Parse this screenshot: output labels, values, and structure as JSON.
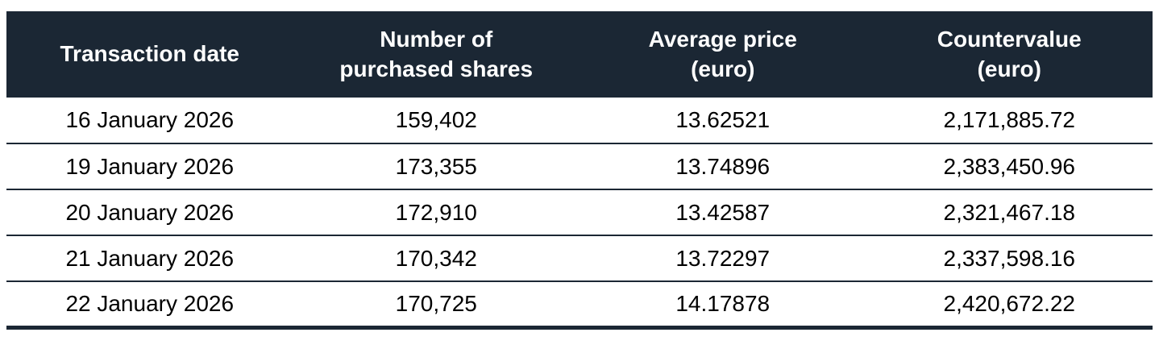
{
  "table": {
    "columns": [
      {
        "line1": "Transaction date",
        "line2": ""
      },
      {
        "line1": "Number of",
        "line2": "purchased shares"
      },
      {
        "line1": "Average price",
        "line2": "(euro)"
      },
      {
        "line1": "Countervalue",
        "line2": "(euro)"
      }
    ],
    "rows": [
      {
        "cells": [
          "16 January 2026",
          "159,402",
          "13.62521",
          "2,171,885.72"
        ]
      },
      {
        "cells": [
          "19 January 2026",
          "173,355",
          "13.74896",
          "2,383,450.96"
        ]
      },
      {
        "cells": [
          "20 January 2026",
          "172,910",
          "13.42587",
          "2,321,467.18"
        ]
      },
      {
        "cells": [
          "21 January 2026",
          "170,342",
          "13.72297",
          "2,337,598.16"
        ]
      },
      {
        "cells": [
          "22 January 2026",
          "170,725",
          "14.17878",
          "2,420,672.22"
        ]
      }
    ]
  },
  "chart_data": {
    "type": "table",
    "title": "",
    "columns": [
      "Transaction date",
      "Number of purchased shares",
      "Average price (euro)",
      "Countervalue (euro)"
    ],
    "rows": [
      [
        "16 January 2026",
        159402,
        13.62521,
        2171885.72
      ],
      [
        "19 January 2026",
        173355,
        13.74896,
        2383450.96
      ],
      [
        "20 January 2026",
        172910,
        13.42587,
        2321467.18
      ],
      [
        "21 January 2026",
        170342,
        13.72297,
        2337598.16
      ],
      [
        "22 January 2026",
        170725,
        14.17878,
        2420672.22
      ]
    ]
  },
  "colors": {
    "header_bg": "#1b2734",
    "header_text": "#ffffff",
    "body_text": "#000000",
    "rule": "#1b2734"
  }
}
